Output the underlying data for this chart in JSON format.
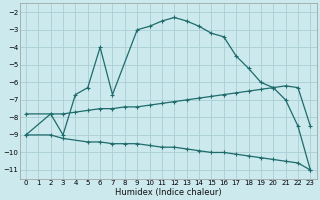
{
  "xlabel": "Humidex (Indice chaleur)",
  "bg_color": "#cce9ed",
  "grid_color": "#aacdd4",
  "line_color": "#1e6b6b",
  "xlim": [
    -0.5,
    23.5
  ],
  "ylim": [
    -11.5,
    -1.5
  ],
  "xticks": [
    0,
    1,
    2,
    3,
    4,
    5,
    6,
    7,
    8,
    9,
    10,
    11,
    12,
    13,
    14,
    15,
    16,
    17,
    18,
    19,
    20,
    21,
    22,
    23
  ],
  "yticks": [
    -2,
    -3,
    -4,
    -5,
    -6,
    -7,
    -8,
    -9,
    -10,
    -11
  ],
  "line1_x": [
    0,
    2,
    3,
    4,
    5,
    6,
    7,
    9,
    10,
    11,
    12,
    13,
    14,
    15,
    16,
    17,
    18,
    19,
    20,
    21,
    22,
    23
  ],
  "line1_y": [
    -9.0,
    -7.8,
    -9.0,
    -6.7,
    -6.3,
    -4.0,
    -6.7,
    -3.0,
    -2.8,
    -2.5,
    -2.3,
    -2.5,
    -2.8,
    -3.2,
    -3.4,
    -4.5,
    -5.2,
    -6.0,
    -6.3,
    -7.0,
    -8.5,
    -11.0
  ],
  "line2_x": [
    0,
    2,
    3,
    4,
    5,
    6,
    7,
    8,
    9,
    10,
    11,
    12,
    13,
    14,
    15,
    16,
    17,
    18,
    19,
    20,
    21,
    22,
    23
  ],
  "line2_y": [
    -7.8,
    -7.8,
    -7.8,
    -7.7,
    -7.6,
    -7.5,
    -7.5,
    -7.4,
    -7.4,
    -7.3,
    -7.2,
    -7.1,
    -7.0,
    -6.9,
    -6.8,
    -6.7,
    -6.6,
    -6.5,
    -6.4,
    -6.3,
    -6.2,
    -6.3,
    -8.5
  ],
  "line3_x": [
    0,
    2,
    3,
    5,
    6,
    7,
    8,
    9,
    10,
    11,
    12,
    13,
    14,
    15,
    16,
    17,
    18,
    19,
    20,
    21,
    22,
    23
  ],
  "line3_y": [
    -9.0,
    -9.0,
    -9.2,
    -9.4,
    -9.4,
    -9.5,
    -9.5,
    -9.5,
    -9.6,
    -9.7,
    -9.7,
    -9.8,
    -9.9,
    -10.0,
    -10.0,
    -10.1,
    -10.2,
    -10.3,
    -10.4,
    -10.5,
    -10.6,
    -11.0
  ]
}
